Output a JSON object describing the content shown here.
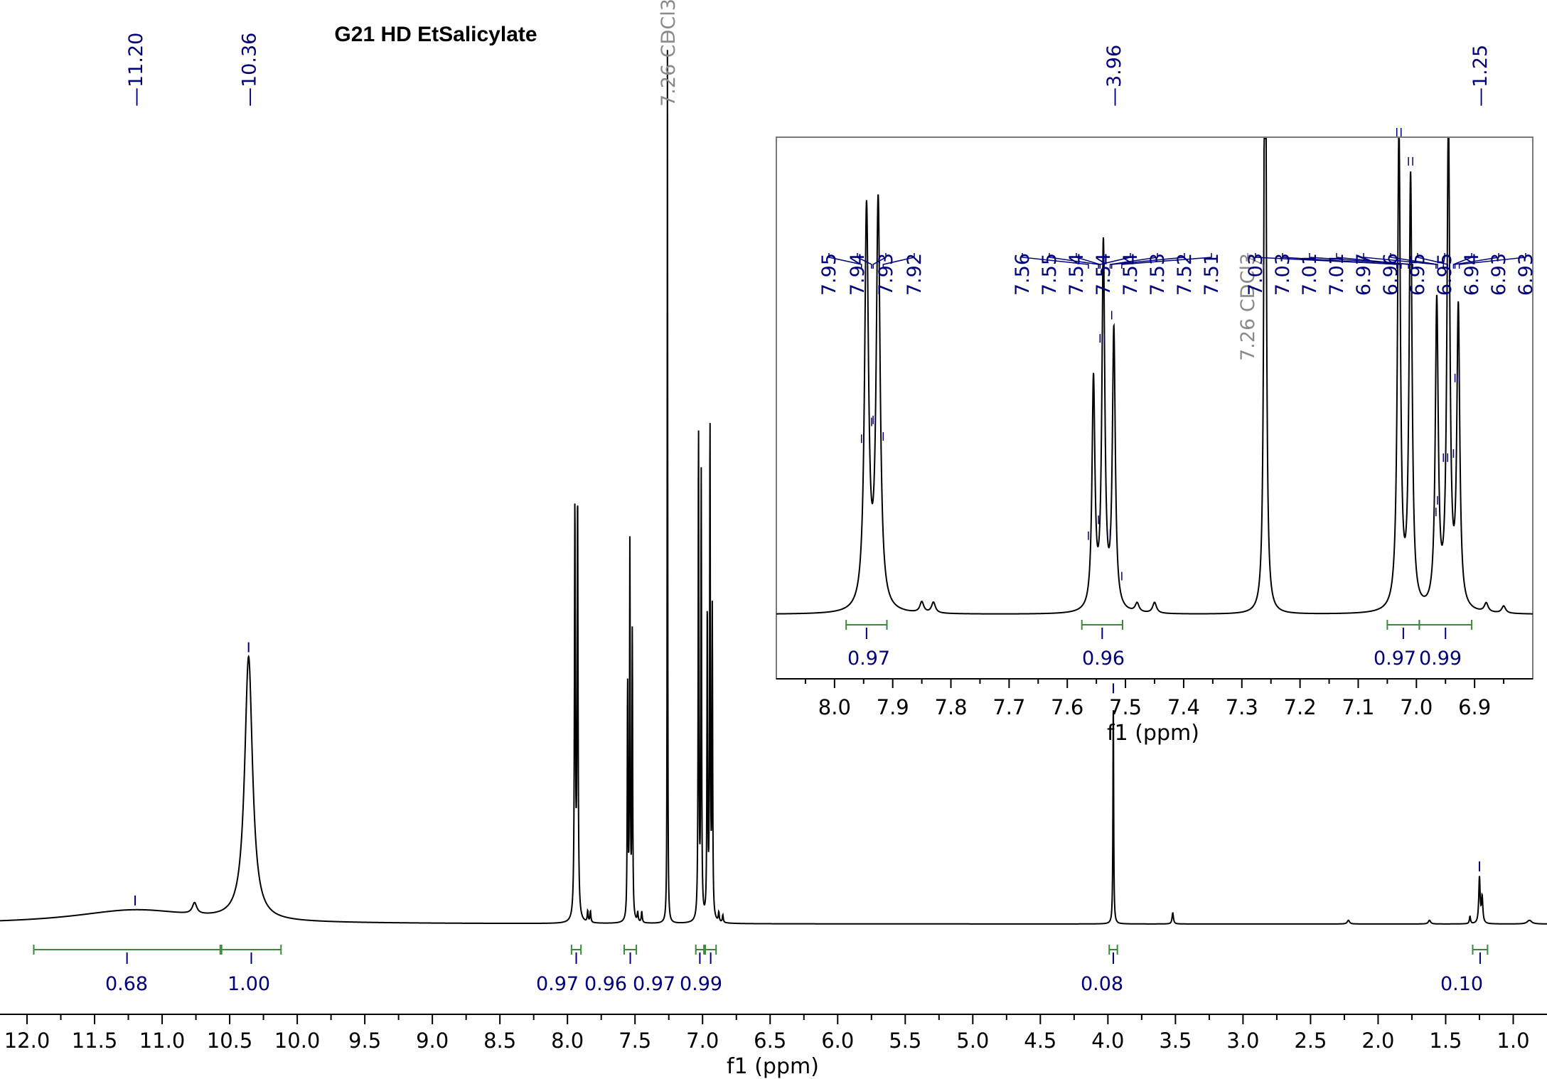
{
  "chart_data": {
    "type": "line",
    "title": "G21 HD EtSalicylate",
    "xlabel": "f1 (ppm)",
    "xlim": [
      12.2,
      0.75
    ],
    "x_reversed": true,
    "x_ticks": [
      "12.0",
      "11.5",
      "11.0",
      "10.5",
      "10.0",
      "9.5",
      "9.0",
      "8.5",
      "8.0",
      "7.5",
      "7.0",
      "6.5",
      "6.0",
      "5.5",
      "5.0",
      "4.5",
      "4.0",
      "3.5",
      "3.0",
      "2.5",
      "2.0",
      "1.5",
      "1.0"
    ],
    "x_tick_values": [
      12.0,
      11.5,
      11.0,
      10.5,
      10.0,
      9.5,
      9.0,
      8.5,
      8.0,
      7.5,
      7.0,
      6.5,
      6.0,
      5.5,
      5.0,
      4.5,
      4.0,
      3.5,
      3.0,
      2.5,
      2.0,
      1.5,
      1.0
    ],
    "grid": false,
    "peak_labels": [
      {
        "text": "11.20",
        "ppm": 11.2
      },
      {
        "text": "10.36",
        "ppm": 10.36
      },
      {
        "text": "7.26 CDCl3",
        "ppm": 7.26,
        "solvent": true
      },
      {
        "text": "3.96",
        "ppm": 3.96
      },
      {
        "text": "1.25",
        "ppm": 1.25
      }
    ],
    "peaks": [
      {
        "ppm": 11.2,
        "height": 0.015,
        "width": 0.55
      },
      {
        "ppm": 10.76,
        "height": 0.012,
        "width": 0.02
      },
      {
        "ppm": 10.36,
        "height": 0.285,
        "width": 0.035
      },
      {
        "ppm": 7.945,
        "height": 0.445,
        "width": 0.004
      },
      {
        "ppm": 7.925,
        "height": 0.452,
        "width": 0.004
      },
      {
        "ppm": 7.85,
        "height": 0.012,
        "width": 0.004
      },
      {
        "ppm": 7.83,
        "height": 0.012,
        "width": 0.004
      },
      {
        "ppm": 7.555,
        "height": 0.255,
        "width": 0.003
      },
      {
        "ppm": 7.538,
        "height": 0.405,
        "width": 0.003
      },
      {
        "ppm": 7.52,
        "height": 0.31,
        "width": 0.003
      },
      {
        "ppm": 7.48,
        "height": 0.01,
        "width": 0.004
      },
      {
        "ppm": 7.45,
        "height": 0.012,
        "width": 0.004
      },
      {
        "ppm": 7.26,
        "height": 0.95,
        "width": 0.002
      },
      {
        "ppm": 7.03,
        "height": 0.535,
        "width": 0.003
      },
      {
        "ppm": 7.01,
        "height": 0.48,
        "width": 0.003
      },
      {
        "ppm": 6.965,
        "height": 0.34,
        "width": 0.003
      },
      {
        "ppm": 6.945,
        "height": 0.54,
        "width": 0.003
      },
      {
        "ppm": 6.928,
        "height": 0.33,
        "width": 0.003
      },
      {
        "ppm": 6.88,
        "height": 0.01,
        "width": 0.004
      },
      {
        "ppm": 6.85,
        "height": 0.008,
        "width": 0.004
      },
      {
        "ppm": 3.96,
        "height": 0.245,
        "width": 0.003
      },
      {
        "ppm": 3.52,
        "height": 0.012,
        "width": 0.006
      },
      {
        "ppm": 2.22,
        "height": 0.004,
        "width": 0.01
      },
      {
        "ppm": 1.25,
        "height": 0.05,
        "width": 0.006
      },
      {
        "ppm": 1.23,
        "height": 0.028,
        "width": 0.006
      },
      {
        "ppm": 1.32,
        "height": 0.008,
        "width": 0.005
      },
      {
        "ppm": 1.62,
        "height": 0.004,
        "width": 0.01
      },
      {
        "ppm": 0.88,
        "height": 0.004,
        "width": 0.02
      }
    ],
    "integrals": [
      {
        "from": 11.95,
        "to": 10.57,
        "value": "0.68"
      },
      {
        "from": 10.56,
        "to": 10.12,
        "value": "1.00"
      },
      {
        "from": 7.97,
        "to": 7.9,
        "value": "0.97"
      },
      {
        "from": 7.58,
        "to": 7.49,
        "value": "0.96"
      },
      {
        "from": 7.05,
        "to": 6.99,
        "value": "0.97"
      },
      {
        "from": 6.98,
        "to": 6.9,
        "value": "0.99"
      },
      {
        "from": 3.99,
        "to": 3.93,
        "value": "0.08"
      },
      {
        "from": 1.3,
        "to": 1.19,
        "value": "0.10"
      }
    ],
    "inset": {
      "xlabel": "f1 (ppm)",
      "xlim": [
        8.1,
        6.8
      ],
      "x_ticks": [
        "8.0",
        "7.9",
        "7.8",
        "7.7",
        "7.6",
        "7.5",
        "7.4",
        "7.3",
        "7.2",
        "7.1",
        "7.0",
        "6.9"
      ],
      "x_tick_values": [
        8.0,
        7.9,
        7.8,
        7.7,
        7.6,
        7.5,
        7.4,
        7.3,
        7.2,
        7.1,
        7.0,
        6.9
      ],
      "peak_labels": [
        "7.95",
        "7.94",
        "7.93",
        "7.92",
        "7.56",
        "7.55",
        "7.54",
        "7.54",
        "7.54",
        "7.53",
        "7.52",
        "7.51",
        "7.26 CDCl3",
        "7.03",
        "7.03",
        "7.01",
        "7.01",
        "6.97",
        "6.96",
        "6.95",
        "6.95",
        "6.94",
        "6.93",
        "6.93"
      ],
      "peak_label_ppm": [
        7.95,
        7.94,
        7.93,
        7.92,
        7.56,
        7.55,
        7.54,
        7.54,
        7.54,
        7.53,
        7.52,
        7.51,
        7.26,
        7.03,
        7.03,
        7.01,
        7.01,
        6.97,
        6.96,
        6.95,
        6.95,
        6.94,
        6.93,
        6.93
      ],
      "solvent_label": "7.26 CDCl3",
      "integrals": [
        {
          "from": 7.98,
          "to": 7.91,
          "value": "0.97"
        },
        {
          "from": 7.575,
          "to": 7.505,
          "value": "0.96"
        },
        {
          "from": 7.05,
          "to": 6.995,
          "value": "0.97"
        },
        {
          "from": 6.995,
          "to": 6.905,
          "value": "0.99"
        }
      ],
      "integral_label_ppm": [
        7.935,
        7.54,
        7.03,
        6.95
      ]
    }
  }
}
